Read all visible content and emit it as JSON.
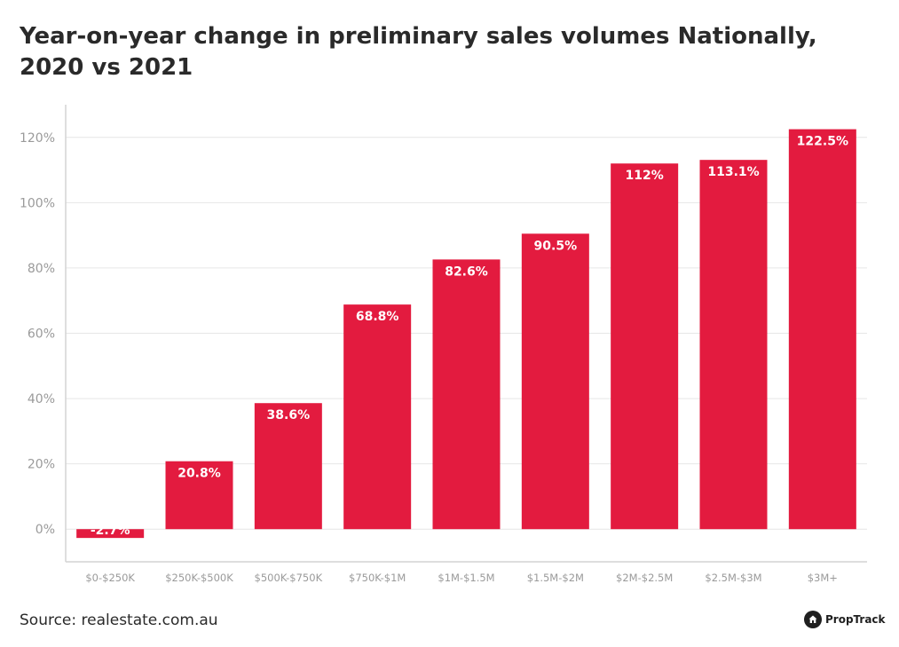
{
  "title": "Year-on-year change in preliminary sales volumes Nationally, 2020 vs 2021",
  "source": "Source: realestate.com.au",
  "brand": {
    "name": "PropTrack",
    "icon": "house-icon"
  },
  "colors": {
    "bar": "#e31b3f",
    "grid": "#e6e6e6",
    "axis": "#d4d4d4",
    "tick": "#9a9a9a",
    "label": "#ffffff"
  },
  "chart_data": {
    "type": "bar",
    "title": "Year-on-year change in preliminary sales volumes Nationally, 2020 vs 2021",
    "categories": [
      "$0-$250K",
      "$250K-$500K",
      "$500K-$750K",
      "$750K-$1M",
      "$1M-$1.5M",
      "$1.5M-$2M",
      "$2M-$2.5M",
      "$2.5M-$3M",
      "$3M+"
    ],
    "values": [
      -2.7,
      20.8,
      38.6,
      68.8,
      82.6,
      90.5,
      112,
      113.1,
      122.5
    ],
    "data_labels": [
      "-2.7%",
      "20.8%",
      "38.6%",
      "68.8%",
      "82.6%",
      "90.5%",
      "112%",
      "113.1%",
      "122.5%"
    ],
    "yticks": [
      "0%",
      "20%",
      "40%",
      "60%",
      "80%",
      "100%",
      "120%"
    ],
    "ytick_values": [
      0,
      20,
      40,
      60,
      80,
      100,
      120
    ],
    "ylim": [
      -10,
      130
    ],
    "grid": true,
    "legend": "none"
  }
}
